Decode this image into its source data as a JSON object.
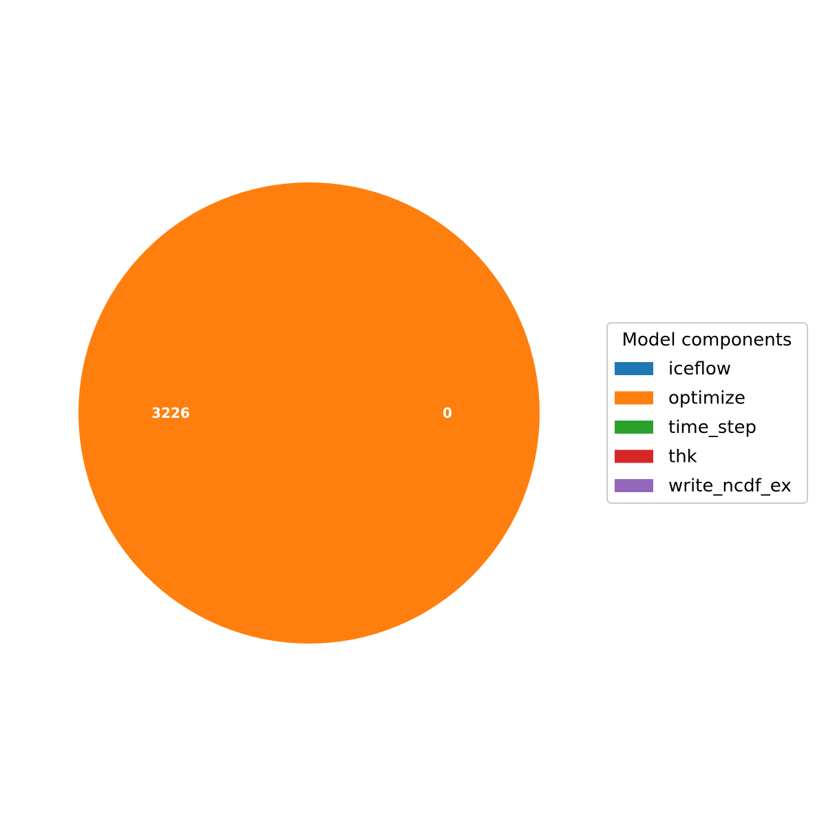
{
  "chart_data": {
    "type": "pie",
    "legend": {
      "title": "Model components",
      "placement": "right"
    },
    "slices": [
      {
        "label": "iceflow",
        "value": 0,
        "color": "#1f77b4",
        "display": "0"
      },
      {
        "label": "optimize",
        "value": 3226,
        "color": "#ff7f0e",
        "display": "3226"
      },
      {
        "label": "time_step",
        "value": 0,
        "color": "#2ca02c",
        "display": ""
      },
      {
        "label": "thk",
        "value": 0,
        "color": "#d62728",
        "display": ""
      },
      {
        "label": "write_ncdf_ex",
        "value": 0,
        "color": "#9467bd",
        "display": ""
      }
    ]
  }
}
